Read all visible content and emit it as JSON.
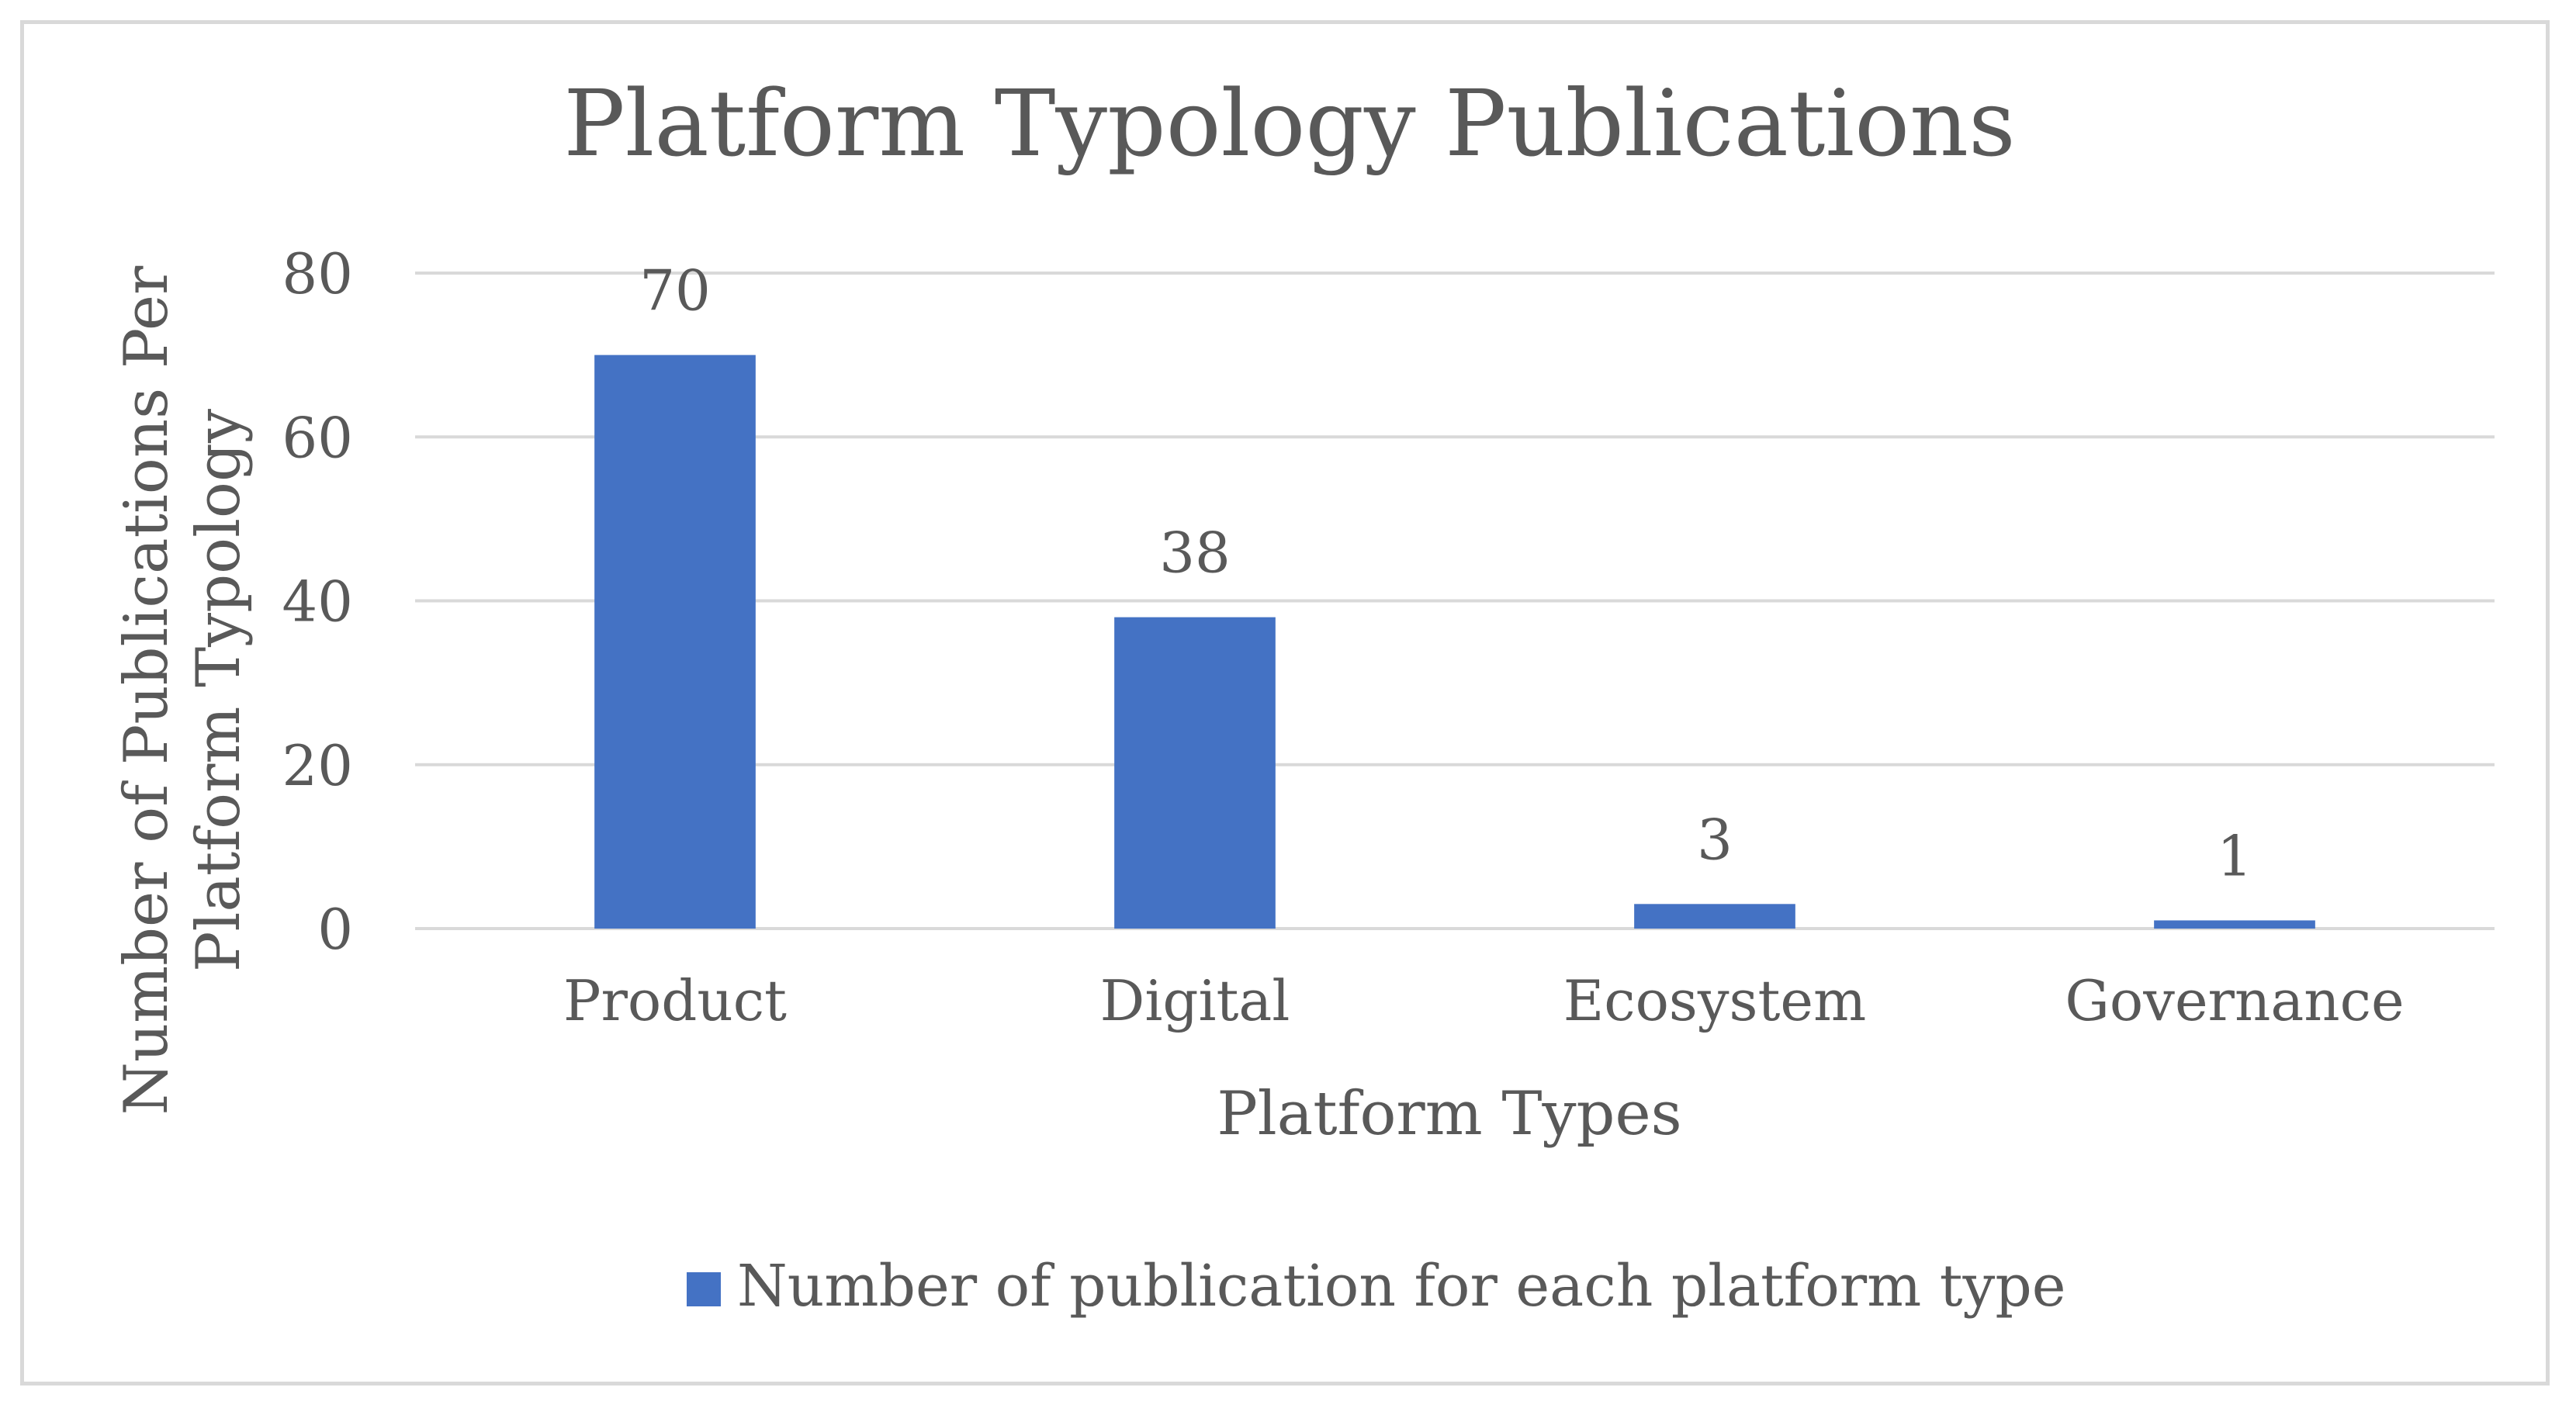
{
  "chart_data": {
    "type": "bar",
    "title": "Platform Typology Publications",
    "xlabel": "Platform Types",
    "ylabel_lines": [
      "Number of Publications Per",
      "Platform Typology"
    ],
    "categories": [
      "Product",
      "Digital",
      "Ecosystem",
      "Governance"
    ],
    "series": [
      {
        "name": "Number of publication for each platform type",
        "values": [
          70,
          38,
          3,
          1
        ],
        "color": "#4472c4"
      }
    ],
    "data_labels": [
      "70",
      "38",
      "3",
      "1"
    ],
    "ylim": [
      0,
      80
    ],
    "yticks": [
      0,
      20,
      40,
      60,
      80
    ],
    "grid": true,
    "legend_position": "bottom",
    "colors": {
      "text": "#595959",
      "grid": "#d9d9d9",
      "frame": "#d9d9d9"
    }
  }
}
